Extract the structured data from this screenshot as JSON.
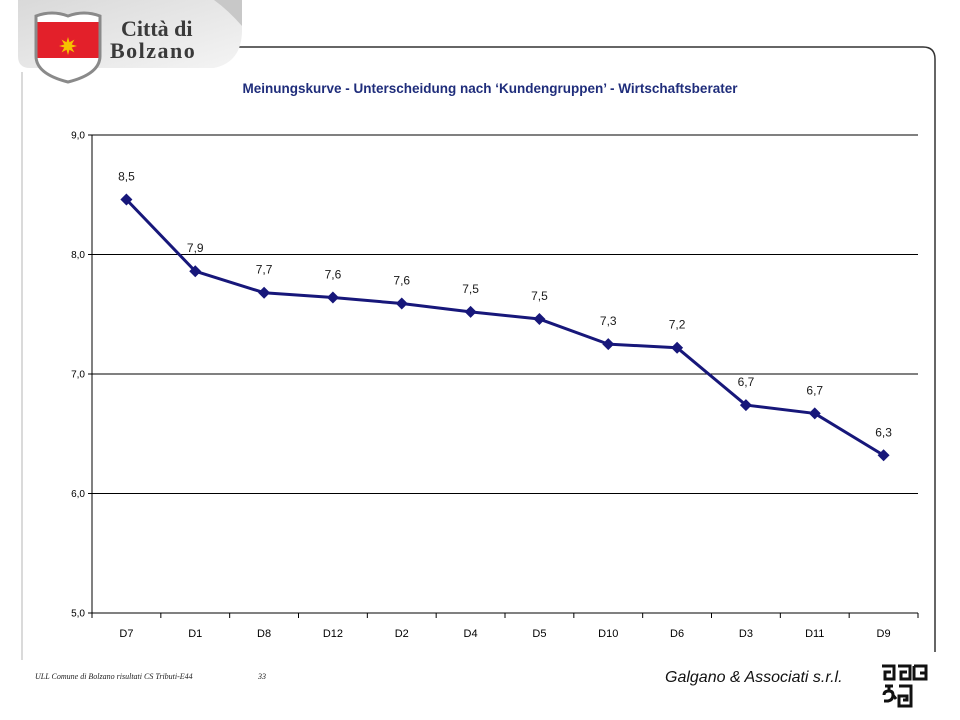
{
  "header": {
    "logo_line1": "Città di",
    "logo_line2": "Bolzano"
  },
  "colors": {
    "series_line": "#17177a",
    "title": "#1f2d7b",
    "shield_red": "#e3202a",
    "shield_star": "#f6c200",
    "frame": "#333333"
  },
  "chart_data": {
    "type": "line",
    "title": "Meinungskurve - Unterscheidung nach ‘Kundengruppen’ - Wirtschaftsberater",
    "xlabel": "",
    "ylabel": "",
    "categories": [
      "D7",
      "D1",
      "D8",
      "D12",
      "D2",
      "D4",
      "D5",
      "D10",
      "D6",
      "D3",
      "D11",
      "D9"
    ],
    "series": [
      {
        "values": [
          8.46,
          7.86,
          7.68,
          7.64,
          7.59,
          7.52,
          7.46,
          7.25,
          7.22,
          6.74,
          6.67,
          6.32
        ],
        "data_labels": [
          "8,5",
          "7,9",
          "7,7",
          "7,6",
          "7,6",
          "7,5",
          "7,5",
          "7,3",
          "7,2",
          "6,7",
          "6,7",
          "6,3"
        ]
      }
    ],
    "ylim": [
      5,
      9
    ],
    "yticks": [
      9,
      8,
      7,
      6,
      5
    ],
    "ytick_labels": [
      "9,0",
      "8,0",
      "7,0",
      "6,0",
      "5,0"
    ],
    "grid": true,
    "legend": "none",
    "marker": "diamond"
  },
  "footer": {
    "source": "ULL Comune di Bolzano risultati CS Tributi-E44",
    "page": "33",
    "company": "Galgano & Associati s.r.l."
  }
}
